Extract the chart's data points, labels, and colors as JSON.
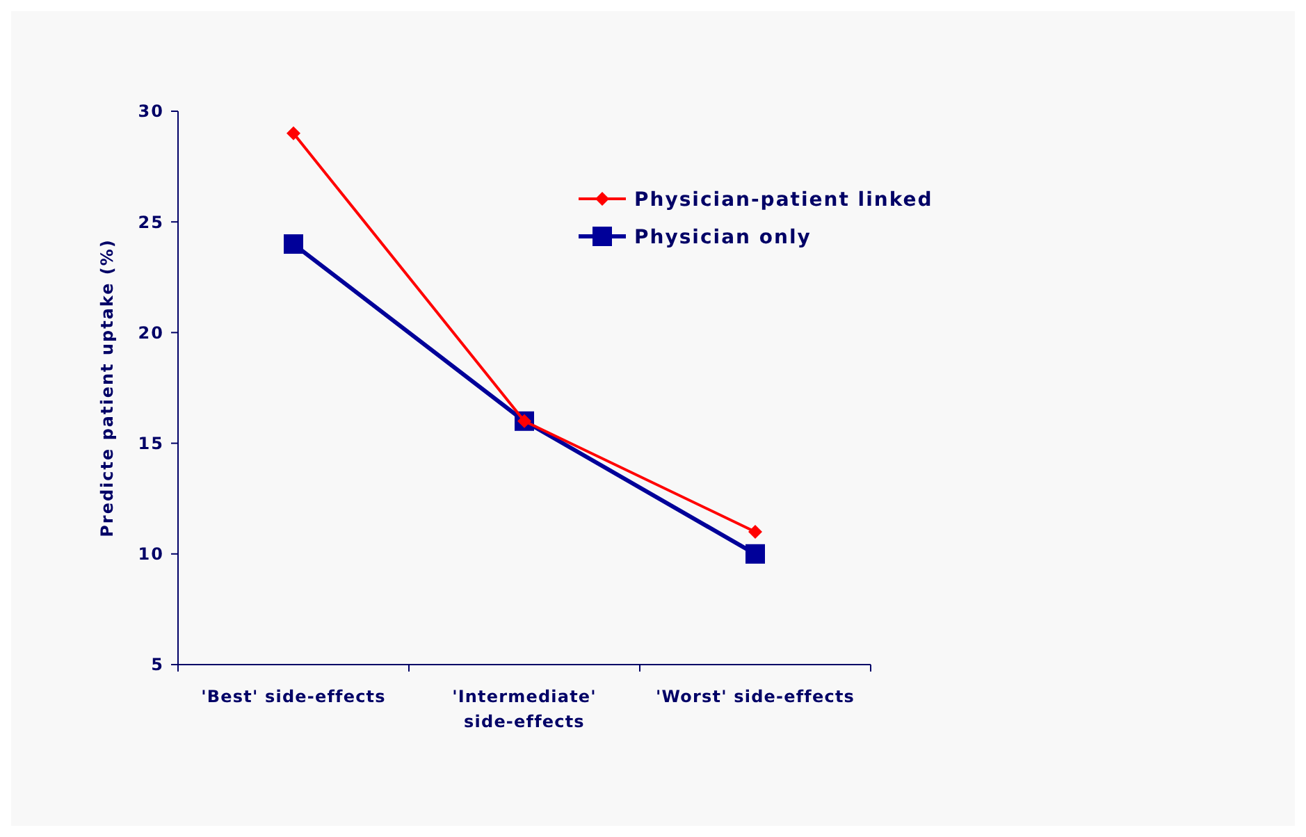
{
  "chart_data": {
    "type": "line",
    "ylabel": "Predicte patient uptake (%)",
    "categories": [
      "'Best' side-effects",
      "'Intermediate' side-effects",
      "'Worst' side-effects"
    ],
    "series": [
      {
        "name": "Physician-patient linked",
        "color": "#ff0000",
        "values": [
          29,
          16,
          11
        ],
        "marker": "diamond"
      },
      {
        "name": "Physician only",
        "color": "#000099",
        "values": [
          24,
          16,
          10
        ],
        "marker": "square"
      }
    ],
    "ylim": [
      5,
      30
    ],
    "yticks": [
      5,
      10,
      15,
      20,
      25,
      30
    ],
    "grid": false,
    "legend": "top right"
  }
}
